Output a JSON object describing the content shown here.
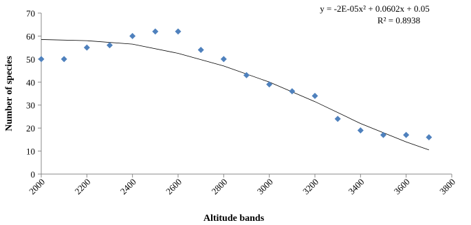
{
  "chart_data": {
    "type": "scatter",
    "x": [
      2000,
      2100,
      2200,
      2300,
      2400,
      2500,
      2600,
      2700,
      2800,
      2900,
      3000,
      3100,
      3200,
      3300,
      3400,
      3500,
      3600,
      3700
    ],
    "values": [
      50,
      50,
      55,
      56,
      60,
      62,
      62,
      54,
      50,
      43,
      39,
      36,
      34,
      24,
      19,
      17,
      17,
      16
    ],
    "color": "#4f81bd",
    "trendline": {
      "x": [
        2000,
        2200,
        2400,
        2600,
        2800,
        3000,
        3200,
        3400,
        3600,
        3700
      ],
      "values": [
        58.5,
        58,
        56.5,
        52.5,
        47,
        40,
        31.5,
        22,
        14,
        10.5
      ],
      "color": "#000000"
    },
    "xlim": [
      2000,
      3800
    ],
    "xticks": [
      2000,
      2200,
      2400,
      2600,
      2800,
      3000,
      3200,
      3400,
      3600,
      3800
    ],
    "ylim": [
      0,
      70
    ],
    "yticks": [
      0,
      10,
      20,
      30,
      40,
      50,
      60,
      70
    ],
    "xlabel": "Altitude bands",
    "ylabel": "Number of species",
    "annotations": [
      "y = -2E-05x² + 0.0602x + 0.05",
      "R² = 0.8938"
    ]
  }
}
